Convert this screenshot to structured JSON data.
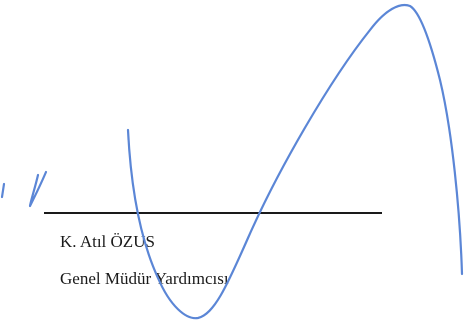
{
  "signature_block": {
    "name": "K. Atıl ÖZUS",
    "title": "Genel Müdür Yardımcısı"
  },
  "colors": {
    "ink": "#5b86d6",
    "text": "#1a1a1a",
    "line": "#1a1a1a"
  }
}
